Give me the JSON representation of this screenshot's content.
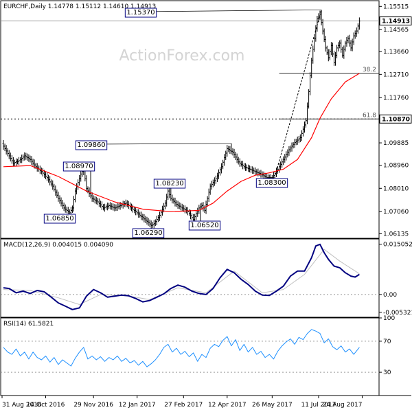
{
  "chart_data": [
    {
      "type": "candlestick",
      "header": "EURCHF,Daily  1.14778 1.15112 1.14610 1.14913",
      "watermark": "ActionForex.com",
      "y_ticks": [
        "1.15515",
        "1.14565",
        "1.13660",
        "1.12710",
        "1.11760",
        "1.10870",
        "1.09885",
        "1.08960",
        "1.08010",
        "1.07060",
        "1.06135"
      ],
      "y_tick_values": [
        1.15515,
        1.14565,
        1.1366,
        1.1271,
        1.1176,
        1.1087,
        1.09885,
        1.0896,
        1.0801,
        1.0706,
        1.06135
      ],
      "ylim": [
        1.0595,
        1.1575
      ],
      "current_price": 1.14913,
      "current_price_label": "1.14913",
      "support_level": 1.1087,
      "support_label": "1.10870",
      "price_series": [
        [
          1,
          1.0975
        ],
        [
          4,
          1.0945
        ],
        [
          8,
          1.0905
        ],
        [
          12,
          1.0915
        ],
        [
          16,
          1.0935
        ],
        [
          20,
          1.092
        ],
        [
          24,
          1.089
        ],
        [
          28,
          1.087
        ],
        [
          32,
          1.0845
        ],
        [
          36,
          1.081
        ],
        [
          40,
          1.076
        ],
        [
          44,
          1.072
        ],
        [
          48,
          1.07
        ],
        [
          50,
          1.072
        ],
        [
          52,
          1.079
        ],
        [
          56,
          1.086
        ],
        [
          58,
          1.088
        ],
        [
          60,
          1.08
        ],
        [
          64,
          1.076
        ],
        [
          68,
          1.0745
        ],
        [
          72,
          1.072
        ],
        [
          76,
          1.073
        ],
        [
          80,
          1.072
        ],
        [
          84,
          1.073
        ],
        [
          88,
          1.074
        ],
        [
          92,
          1.072
        ],
        [
          96,
          1.07
        ],
        [
          100,
          1.068
        ],
        [
          104,
          1.066
        ],
        [
          106,
          1.0648
        ],
        [
          108,
          1.0655
        ],
        [
          112,
          1.069
        ],
        [
          116,
          1.074
        ],
        [
          118,
          1.079
        ],
        [
          120,
          1.076
        ],
        [
          124,
          1.0735
        ],
        [
          128,
          1.072
        ],
        [
          132,
          1.0705
        ],
        [
          136,
          1.0672
        ],
        [
          140,
          1.072
        ],
        [
          142,
          1.073
        ],
        [
          144,
          1.071
        ],
        [
          148,
          1.081
        ],
        [
          152,
          1.084
        ],
        [
          156,
          1.089
        ],
        [
          160,
          1.0965
        ],
        [
          164,
          1.095
        ],
        [
          168,
          1.091
        ],
        [
          172,
          1.089
        ],
        [
          176,
          1.088
        ],
        [
          180,
          1.087
        ],
        [
          184,
          1.086
        ],
        [
          188,
          1.0845
        ],
        [
          192,
          1.0845
        ],
        [
          196,
          1.088
        ],
        [
          200,
          1.092
        ],
        [
          204,
          1.096
        ],
        [
          208,
          1.099
        ],
        [
          212,
          1.101
        ],
        [
          216,
          1.108
        ],
        [
          218,
          1.12
        ],
        [
          220,
          1.133
        ],
        [
          222,
          1.142
        ],
        [
          224,
          1.15
        ],
        [
          226,
          1.152
        ],
        [
          228,
          1.145
        ],
        [
          230,
          1.138
        ],
        [
          232,
          1.134
        ],
        [
          234,
          1.139
        ],
        [
          236,
          1.132
        ],
        [
          238,
          1.138
        ],
        [
          240,
          1.14
        ],
        [
          242,
          1.135
        ],
        [
          244,
          1.14
        ],
        [
          246,
          1.142
        ],
        [
          248,
          1.138
        ],
        [
          250,
          1.143
        ],
        [
          252,
          1.145
        ],
        [
          254,
          1.1491
        ]
      ],
      "moving_average": [
        [
          1,
          1.089
        ],
        [
          20,
          1.0895
        ],
        [
          40,
          1.085
        ],
        [
          60,
          1.079
        ],
        [
          80,
          1.0745
        ],
        [
          100,
          1.0715
        ],
        [
          120,
          1.0705
        ],
        [
          140,
          1.071
        ],
        [
          150,
          1.074
        ],
        [
          160,
          1.079
        ],
        [
          170,
          1.083
        ],
        [
          180,
          1.0855
        ],
        [
          190,
          1.0865
        ],
        [
          200,
          1.088
        ],
        [
          210,
          1.092
        ],
        [
          220,
          1.101
        ],
        [
          226,
          1.109
        ],
        [
          234,
          1.117
        ],
        [
          244,
          1.124
        ],
        [
          254,
          1.1275
        ]
      ],
      "price_labels": [
        {
          "text": "1.15370",
          "bar": 227,
          "value": 1.1537
        },
        {
          "text": "1.09860",
          "bar": 163,
          "value": 1.0986
        },
        {
          "text": "1.08970",
          "bar": 63,
          "value": 1.0897
        },
        {
          "text": "1.08230",
          "bar": 120,
          "value": 1.0823
        },
        {
          "text": "1.08300",
          "bar": 191,
          "value": 1.083
        },
        {
          "text": "1.06850",
          "bar": 47,
          "value": 1.0685
        },
        {
          "text": "1.06520",
          "bar": 141,
          "value": 1.0652
        },
        {
          "text": "1.06290",
          "bar": 106,
          "value": 1.0629
        }
      ],
      "fibonacci_levels": [
        {
          "label": "38.2",
          "value": 1.1275
        },
        {
          "label": "61.8",
          "value": 1.1087
        }
      ],
      "trendline": {
        "from": [
          193,
          1.083
        ],
        "to": [
          227,
          1.1537
        ]
      }
    },
    {
      "type": "line",
      "title": "MACD(12,26,9) 0.004015 0.004090",
      "y_ticks": [
        "0.015052",
        "0.00",
        "-0.005321"
      ],
      "y_tick_values": [
        0.015052,
        0.0,
        -0.005321
      ],
      "ylim": [
        -0.0068,
        0.0166
      ],
      "zero_level": 0.0,
      "series": [
        {
          "name": "MACD",
          "values": [
            [
              1,
              0.002
            ],
            [
              5,
              0.0018
            ],
            [
              10,
              0.0005
            ],
            [
              15,
              0.001
            ],
            [
              20,
              0.0003
            ],
            [
              25,
              0.0012
            ],
            [
              30,
              0.0008
            ],
            [
              35,
              -0.0008
            ],
            [
              40,
              -0.0025
            ],
            [
              45,
              -0.0035
            ],
            [
              50,
              -0.0045
            ],
            [
              55,
              -0.004
            ],
            [
              60,
              -0.0005
            ],
            [
              65,
              0.0015
            ],
            [
              70,
              0.0005
            ],
            [
              75,
              -0.0008
            ],
            [
              80,
              -0.0005
            ],
            [
              85,
              -0.0002
            ],
            [
              90,
              -0.0004
            ],
            [
              95,
              -0.0012
            ],
            [
              100,
              -0.0022
            ],
            [
              105,
              -0.0018
            ],
            [
              110,
              -0.0008
            ],
            [
              115,
              0.0002
            ],
            [
              120,
              0.0018
            ],
            [
              125,
              0.0028
            ],
            [
              130,
              0.0022
            ],
            [
              135,
              0.001
            ],
            [
              140,
              0.0003
            ],
            [
              145,
              0.0
            ],
            [
              150,
              0.0018
            ],
            [
              155,
              0.005
            ],
            [
              160,
              0.0075
            ],
            [
              165,
              0.0065
            ],
            [
              170,
              0.0045
            ],
            [
              175,
              0.003
            ],
            [
              180,
              0.001
            ],
            [
              185,
              -0.0002
            ],
            [
              190,
              -0.0003
            ],
            [
              195,
              0.001
            ],
            [
              200,
              0.0025
            ],
            [
              205,
              0.0055
            ],
            [
              210,
              0.007
            ],
            [
              215,
              0.007
            ],
            [
              220,
              0.011
            ],
            [
              223,
              0.0145
            ],
            [
              226,
              0.015
            ],
            [
              229,
              0.0125
            ],
            [
              232,
              0.0105
            ],
            [
              236,
              0.0085
            ],
            [
              240,
              0.008
            ],
            [
              244,
              0.0065
            ],
            [
              248,
              0.0055
            ],
            [
              251,
              0.0052
            ],
            [
              254,
              0.006
            ]
          ]
        },
        {
          "name": "Signal",
          "values": [
            [
              1,
              0.0015
            ],
            [
              20,
              0.0012
            ],
            [
              40,
              -0.001
            ],
            [
              55,
              -0.003
            ],
            [
              70,
              0.0
            ],
            [
              90,
              -0.0005
            ],
            [
              105,
              -0.0015
            ],
            [
              125,
              0.002
            ],
            [
              145,
              0.0005
            ],
            [
              165,
              0.007
            ],
            [
              185,
              0.0005
            ],
            [
              200,
              0.0015
            ],
            [
              215,
              0.006
            ],
            [
              229,
              0.0135
            ],
            [
              240,
              0.01
            ],
            [
              254,
              0.0062
            ]
          ]
        }
      ]
    },
    {
      "type": "line",
      "title": "RSI(14) 61.5821",
      "y_ticks": [
        "100",
        "70",
        "30"
      ],
      "y_tick_values": [
        100,
        70,
        30
      ],
      "ylim": [
        0,
        100
      ],
      "levels": [
        70,
        30
      ],
      "series": [
        {
          "name": "RSI",
          "values": [
            [
              1,
              62
            ],
            [
              4,
              56
            ],
            [
              7,
              53
            ],
            [
              10,
              60
            ],
            [
              13,
              51
            ],
            [
              16,
              56
            ],
            [
              19,
              47
            ],
            [
              22,
              56
            ],
            [
              25,
              49
            ],
            [
              28,
              46
            ],
            [
              31,
              51
            ],
            [
              34,
              43
            ],
            [
              37,
              49
            ],
            [
              40,
              40
            ],
            [
              43,
              46
            ],
            [
              46,
              42
            ],
            [
              49,
              38
            ],
            [
              52,
              48
            ],
            [
              55,
              56
            ],
            [
              58,
              62
            ],
            [
              61,
              47
            ],
            [
              64,
              51
            ],
            [
              67,
              46
            ],
            [
              70,
              50
            ],
            [
              73,
              44
            ],
            [
              76,
              49
            ],
            [
              79,
              46
            ],
            [
              82,
              51
            ],
            [
              85,
              44
            ],
            [
              88,
              48
            ],
            [
              91,
              42
            ],
            [
              94,
              45
            ],
            [
              97,
              39
            ],
            [
              100,
              44
            ],
            [
              103,
              37
            ],
            [
              106,
              41
            ],
            [
              109,
              46
            ],
            [
              112,
              53
            ],
            [
              115,
              62
            ],
            [
              118,
              66
            ],
            [
              121,
              56
            ],
            [
              124,
              61
            ],
            [
              127,
              53
            ],
            [
              130,
              57
            ],
            [
              133,
              50
            ],
            [
              136,
              55
            ],
            [
              139,
              44
            ],
            [
              142,
              53
            ],
            [
              145,
              49
            ],
            [
              148,
              61
            ],
            [
              151,
              66
            ],
            [
              154,
              63
            ],
            [
              157,
              71
            ],
            [
              160,
              76
            ],
            [
              163,
              64
            ],
            [
              166,
              72
            ],
            [
              169,
              58
            ],
            [
              172,
              66
            ],
            [
              175,
              56
            ],
            [
              178,
              62
            ],
            [
              181,
              53
            ],
            [
              184,
              57
            ],
            [
              187,
              49
            ],
            [
              190,
              53
            ],
            [
              193,
              47
            ],
            [
              196,
              57
            ],
            [
              199,
              64
            ],
            [
              202,
              69
            ],
            [
              205,
              73
            ],
            [
              208,
              66
            ],
            [
              211,
              75
            ],
            [
              214,
              72
            ],
            [
              217,
              80
            ],
            [
              220,
              85
            ],
            [
              223,
              83
            ],
            [
              226,
              80
            ],
            [
              229,
              68
            ],
            [
              232,
              73
            ],
            [
              235,
              63
            ],
            [
              238,
              59
            ],
            [
              241,
              64
            ],
            [
              244,
              56
            ],
            [
              247,
              60
            ],
            [
              250,
              53
            ],
            [
              254,
              62
            ]
          ]
        }
      ]
    }
  ],
  "x_axis": {
    "labels": [
      {
        "text": "31 Aug 2016",
        "bar": 0
      },
      {
        "text": "14 Oct 2016",
        "bar": 31
      },
      {
        "text": "29 Nov 2016",
        "bar": 65
      },
      {
        "text": "12 Jan 2017",
        "bar": 96
      },
      {
        "text": "27 Feb 2017",
        "bar": 129
      },
      {
        "text": "12 Apr 2017",
        "bar": 160
      },
      {
        "text": "26 May 2017",
        "bar": 192
      },
      {
        "text": "11 Jul 2017",
        "bar": 225
      },
      {
        "text": "24 Aug 2017",
        "bar": 256
      }
    ]
  },
  "colors": {
    "price": "#000000",
    "moving_average": "#ff0000",
    "macd": "#000080",
    "signal": "#c0c0c0",
    "rsi": "#1e90ff",
    "label_border": "#000080",
    "guide": "#999999"
  }
}
